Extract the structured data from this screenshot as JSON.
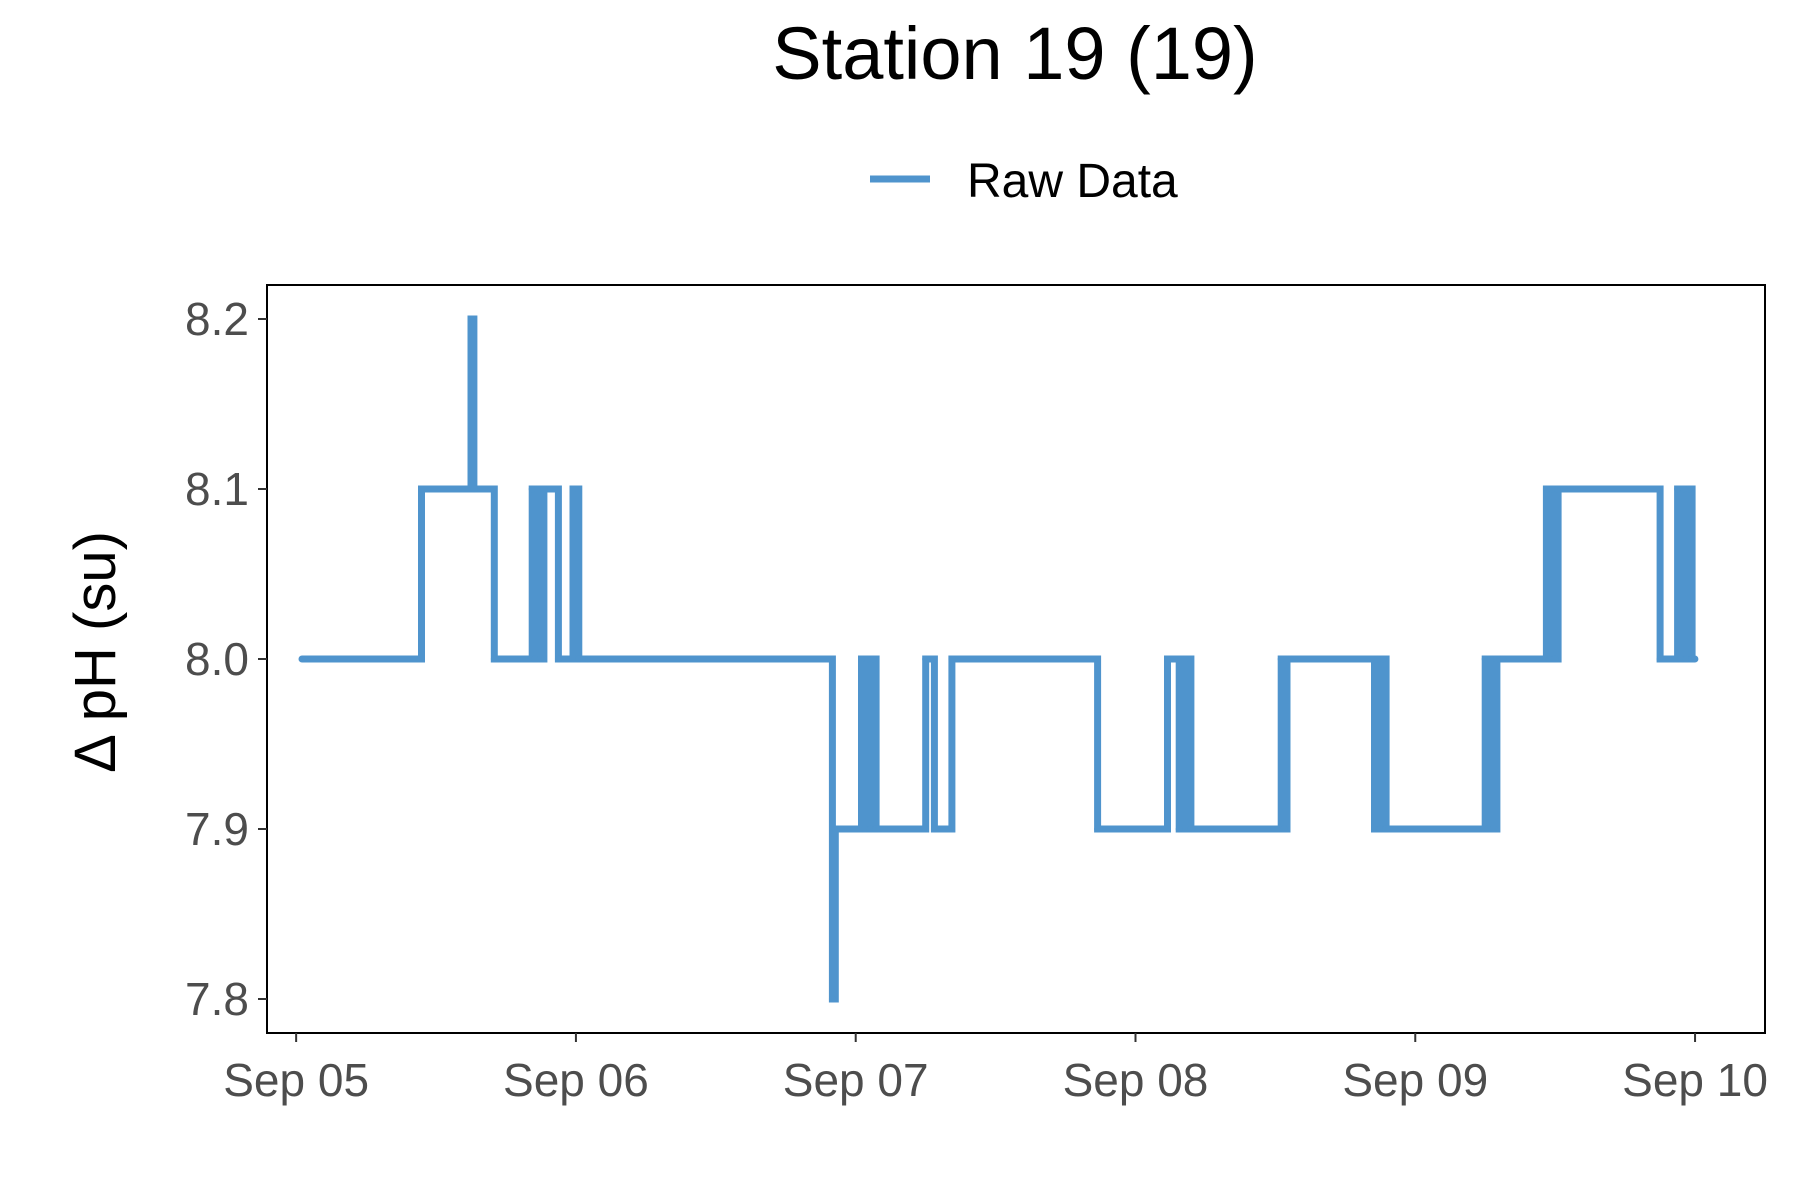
{
  "chart_data": {
    "type": "line",
    "title": "Station 19 (19)",
    "ylabel": "Δ pH (su)",
    "xlabel": "",
    "ylim": [
      7.78,
      8.22
    ],
    "yticks": [
      "7.8",
      "7.9",
      "8.0",
      "8.1",
      "8.2"
    ],
    "xlim": [
      "2024-09-04T21:30",
      "2024-09-10T06:00"
    ],
    "xticks": [
      {
        "date": "2024-09-05T00:00",
        "label": "Sep 05"
      },
      {
        "date": "2024-09-06T00:00",
        "label": "Sep 06"
      },
      {
        "date": "2024-09-07T00:00",
        "label": "Sep 07"
      },
      {
        "date": "2024-09-08T00:00",
        "label": "Sep 08"
      },
      {
        "date": "2024-09-09T00:00",
        "label": "Sep 09"
      },
      {
        "date": "2024-09-10T00:00",
        "label": "Sep 10"
      }
    ],
    "grid": false,
    "legend_position": "top",
    "series": [
      {
        "name": "Raw Data",
        "color": "#4f94cd",
        "x": [
          "2024-09-05T00:30",
          "2024-09-05T10:45",
          "2024-09-05T15:00",
          "2024-09-05T15:05",
          "2024-09-05T15:10",
          "2024-09-05T15:15",
          "2024-09-05T17:00",
          "2024-09-05T20:15",
          "2024-09-05T20:30",
          "2024-09-05T20:45",
          "2024-09-05T21:00",
          "2024-09-05T21:15",
          "2024-09-05T22:30",
          "2024-09-05T23:45",
          "2024-09-06T00:15",
          "2024-09-06T01:00",
          "2024-09-06T22:00",
          "2024-09-06T22:15",
          "2024-09-06T22:45",
          "2024-09-07T00:30",
          "2024-09-07T00:45",
          "2024-09-07T01:00",
          "2024-09-07T01:15",
          "2024-09-07T01:30",
          "2024-09-07T01:45",
          "2024-09-07T02:00",
          "2024-09-07T06:00",
          "2024-09-07T06:45",
          "2024-09-07T08:15",
          "2024-09-07T20:45",
          "2024-09-08T02:45",
          "2024-09-08T03:45",
          "2024-09-08T04:15",
          "2024-09-08T04:45",
          "2024-09-08T06:30",
          "2024-09-08T12:30",
          "2024-09-08T12:45",
          "2024-09-08T13:00",
          "2024-09-08T13:15",
          "2024-09-08T20:30",
          "2024-09-08T20:45",
          "2024-09-08T21:00",
          "2024-09-08T21:15",
          "2024-09-08T21:30",
          "2024-09-08T21:45",
          "2024-09-09T06:00",
          "2024-09-09T06:15",
          "2024-09-09T06:30",
          "2024-09-09T06:45",
          "2024-09-09T07:00",
          "2024-09-09T07:15",
          "2024-09-09T07:30",
          "2024-09-09T11:15",
          "2024-09-09T11:30",
          "2024-09-09T11:45",
          "2024-09-09T12:00",
          "2024-09-09T12:15",
          "2024-09-09T12:30",
          "2024-09-09T12:45",
          "2024-09-09T21:00",
          "2024-09-09T22:30",
          "2024-09-09T22:45",
          "2024-09-09T23:00",
          "2024-09-09T23:15",
          "2024-09-09T23:30",
          "2024-09-09T23:45",
          "2024-09-09T23:59"
        ],
        "y": [
          8.0,
          8.1,
          8.2,
          8.1,
          8.2,
          8.1,
          8.0,
          8.1,
          8.0,
          8.1,
          8.0,
          8.1,
          8.0,
          8.1,
          8.0,
          8.0,
          7.8,
          7.9,
          7.9,
          8.0,
          7.9,
          8.0,
          7.9,
          8.0,
          7.9,
          7.9,
          8.0,
          7.9,
          8.0,
          7.9,
          8.0,
          7.9,
          8.0,
          7.9,
          7.9,
          8.0,
          7.9,
          8.0,
          8.0,
          7.9,
          8.0,
          7.9,
          8.0,
          7.9,
          7.9,
          8.0,
          7.9,
          8.0,
          7.9,
          8.0,
          8.0,
          8.0,
          8.1,
          8.0,
          8.1,
          8.0,
          8.1,
          8.1,
          8.1,
          8.0,
          8.1,
          8.0,
          8.1,
          8.0,
          8.1,
          8.0,
          8.0
        ]
      }
    ]
  }
}
